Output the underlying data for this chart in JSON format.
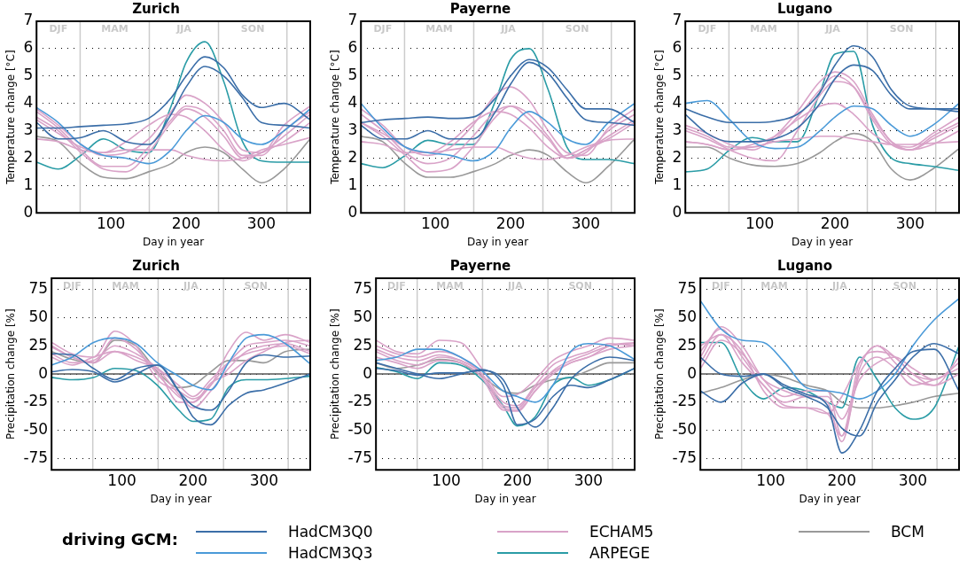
{
  "chart_data": [
    {
      "type": "line",
      "title": "Zurich",
      "xlabel": "Day in year",
      "ylabel": "Temperature change [°C]",
      "xlim": [
        1,
        365
      ],
      "xticks": [
        100,
        200,
        300
      ],
      "ylim": [
        0,
        7
      ],
      "yticks": [
        0,
        1,
        2,
        3,
        4,
        5,
        6,
        7
      ],
      "grid": "y",
      "marker": "none",
      "legend": "bottom",
      "legend_title": "driving GCM:",
      "ref_lines": [
        {
          "axis": "x",
          "value": 59,
          "color": "#cccccc"
        },
        {
          "axis": "x",
          "value": 151,
          "color": "#cccccc"
        },
        {
          "axis": "x",
          "value": 243,
          "color": "#cccccc"
        },
        {
          "axis": "x",
          "value": 334,
          "color": "#cccccc"
        }
      ],
      "annotations": [
        "DJF",
        "MAM",
        "JJA",
        "SON"
      ],
      "x": [
        1,
        30,
        60,
        90,
        120,
        150,
        180,
        200,
        225,
        250,
        275,
        300,
        330,
        365
      ],
      "series": [
        {
          "name": "HadCM3Q0",
          "color": "#3b6ea8",
          "values": [
            3.1,
            3.1,
            3.15,
            3.2,
            3.25,
            3.45,
            4.2,
            5.0,
            5.7,
            5.3,
            4.3,
            3.85,
            4.0,
            3.4
          ]
        },
        {
          "color": "#3b6ea8",
          "values": [
            3.3,
            2.7,
            2.75,
            3.0,
            2.6,
            2.5,
            3.6,
            4.6,
            5.35,
            5.0,
            4.2,
            3.3,
            3.2,
            3.1
          ]
        },
        {
          "name": "HadCM3Q3",
          "color": "#4a9ad8",
          "values": [
            3.85,
            3.3,
            2.5,
            2.1,
            2.0,
            1.8,
            2.3,
            3.0,
            3.55,
            3.3,
            2.7,
            2.5,
            3.0,
            3.8
          ]
        },
        {
          "name": "ECHAM5",
          "color": "#d9a3c8",
          "values": [
            3.8,
            3.2,
            2.5,
            2.1,
            2.2,
            2.7,
            3.7,
            4.3,
            4.0,
            3.3,
            2.3,
            2.2,
            3.2,
            3.9
          ]
        },
        {
          "color": "#d9a3c8",
          "values": [
            3.7,
            3.1,
            2.3,
            1.7,
            1.7,
            2.4,
            3.4,
            3.9,
            3.7,
            3.0,
            2.1,
            2.1,
            3.0,
            3.7
          ]
        },
        {
          "color": "#d9a3c8",
          "values": [
            3.5,
            3.0,
            2.2,
            1.6,
            1.5,
            2.2,
            3.3,
            3.8,
            3.5,
            2.8,
            2.0,
            2.2,
            2.8,
            3.6
          ]
        },
        {
          "color": "#d9a3c8",
          "values": [
            3.4,
            2.9,
            2.4,
            2.2,
            2.6,
            3.2,
            3.6,
            3.5,
            3.0,
            2.3,
            1.9,
            2.2,
            2.6,
            3.3
          ]
        },
        {
          "color": "#d9a3c8",
          "values": [
            2.7,
            2.6,
            2.3,
            2.2,
            2.3,
            2.3,
            2.3,
            2.1,
            1.95,
            1.9,
            2.0,
            2.3,
            2.5,
            2.75
          ]
        },
        {
          "name": "ARPEGE",
          "color": "#2a9ca6",
          "values": [
            1.85,
            1.6,
            2.1,
            2.7,
            2.3,
            2.2,
            3.9,
            5.5,
            6.25,
            4.8,
            2.6,
            1.9,
            1.85,
            1.85
          ]
        },
        {
          "name": "BCM",
          "color": "#999999",
          "values": [
            2.8,
            2.6,
            1.8,
            1.3,
            1.25,
            1.5,
            1.8,
            2.2,
            2.4,
            2.2,
            1.6,
            1.1,
            1.6,
            2.7
          ]
        }
      ]
    },
    {
      "type": "line",
      "title": "Payerne",
      "xlabel": "Day in year",
      "ylabel": "Temperature change [°C]",
      "xlim": [
        1,
        365
      ],
      "xticks": [
        100,
        200,
        300
      ],
      "ylim": [
        0,
        7
      ],
      "yticks": [
        0,
        1,
        2,
        3,
        4,
        5,
        6,
        7
      ],
      "grid": "y",
      "marker": "none",
      "legend": "bottom",
      "ref_lines": [
        {
          "axis": "x",
          "value": 59,
          "color": "#cccccc"
        },
        {
          "axis": "x",
          "value": 151,
          "color": "#cccccc"
        },
        {
          "axis": "x",
          "value": 243,
          "color": "#cccccc"
        },
        {
          "axis": "x",
          "value": 334,
          "color": "#cccccc"
        }
      ],
      "annotations": [
        "DJF",
        "MAM",
        "JJA",
        "SON"
      ],
      "x": [
        1,
        30,
        60,
        90,
        120,
        150,
        180,
        200,
        225,
        250,
        275,
        300,
        330,
        365
      ],
      "series": [
        {
          "name": "HadCM3Q0",
          "color": "#3b6ea8",
          "values": [
            3.3,
            3.4,
            3.45,
            3.5,
            3.45,
            3.5,
            4.2,
            5.0,
            5.6,
            5.3,
            4.5,
            3.8,
            3.8,
            3.3
          ]
        },
        {
          "color": "#3b6ea8",
          "values": [
            3.2,
            2.7,
            2.7,
            3.0,
            2.7,
            2.7,
            3.7,
            4.7,
            5.5,
            5.1,
            4.2,
            3.4,
            3.3,
            3.2
          ]
        },
        {
          "name": "HadCM3Q3",
          "color": "#4a9ad8",
          "values": [
            4.0,
            3.1,
            2.4,
            2.2,
            2.1,
            1.9,
            2.3,
            3.1,
            3.7,
            3.3,
            2.7,
            2.5,
            3.3,
            4.0
          ]
        },
        {
          "name": "ECHAM5",
          "color": "#d9a3c8",
          "values": [
            3.8,
            3.2,
            2.4,
            2.1,
            2.4,
            3.2,
            4.3,
            4.6,
            4.1,
            3.0,
            2.2,
            2.1,
            3.1,
            3.8
          ]
        },
        {
          "color": "#d9a3c8",
          "values": [
            3.6,
            3.0,
            2.2,
            1.8,
            2.0,
            2.8,
            3.7,
            3.9,
            3.6,
            2.8,
            2.0,
            2.2,
            3.0,
            3.6
          ]
        },
        {
          "color": "#d9a3c8",
          "values": [
            3.3,
            2.8,
            2.1,
            1.5,
            1.6,
            2.4,
            3.5,
            3.9,
            3.4,
            2.7,
            2.0,
            2.3,
            2.8,
            3.4
          ]
        },
        {
          "color": "#d9a3c8",
          "values": [
            3.3,
            2.9,
            2.4,
            2.2,
            2.6,
            3.3,
            3.7,
            3.6,
            3.1,
            2.4,
            2.0,
            2.3,
            2.7,
            3.3
          ]
        },
        {
          "color": "#d9a3c8",
          "values": [
            2.6,
            2.5,
            2.2,
            2.2,
            2.3,
            2.4,
            2.4,
            2.2,
            2.0,
            1.95,
            2.1,
            2.4,
            2.65,
            2.7
          ]
        },
        {
          "name": "ARPEGE",
          "color": "#2a9ca6",
          "values": [
            1.8,
            1.65,
            2.1,
            2.65,
            2.5,
            2.5,
            4.1,
            5.6,
            6.0,
            4.5,
            2.4,
            1.95,
            1.95,
            1.8
          ]
        },
        {
          "name": "BCM",
          "color": "#999999",
          "values": [
            2.8,
            2.6,
            1.8,
            1.3,
            1.3,
            1.5,
            1.8,
            2.1,
            2.3,
            2.1,
            1.5,
            1.1,
            1.7,
            2.7
          ]
        }
      ]
    },
    {
      "type": "line",
      "title": "Lugano",
      "xlabel": "Day in year",
      "ylabel": "Temperature change [°C]",
      "xlim": [
        1,
        365
      ],
      "xticks": [
        100,
        200,
        300
      ],
      "ylim": [
        0,
        7
      ],
      "yticks": [
        0,
        1,
        2,
        3,
        4,
        5,
        6,
        7
      ],
      "grid": "y",
      "marker": "none",
      "legend": "bottom",
      "ref_lines": [
        {
          "axis": "x",
          "value": 59,
          "color": "#cccccc"
        },
        {
          "axis": "x",
          "value": 151,
          "color": "#cccccc"
        },
        {
          "axis": "x",
          "value": 243,
          "color": "#cccccc"
        },
        {
          "axis": "x",
          "value": 334,
          "color": "#cccccc"
        }
      ],
      "annotations": [
        "DJF",
        "MAM",
        "JJA",
        "SON"
      ],
      "x": [
        1,
        30,
        60,
        90,
        120,
        150,
        180,
        200,
        225,
        250,
        275,
        300,
        330,
        365
      ],
      "series": [
        {
          "name": "HadCM3Q0",
          "color": "#3b6ea8",
          "values": [
            3.8,
            3.5,
            3.3,
            3.3,
            3.35,
            3.6,
            4.4,
            5.4,
            6.1,
            5.7,
            4.5,
            3.9,
            3.8,
            3.7
          ]
        },
        {
          "color": "#3b6ea8",
          "values": [
            3.6,
            2.9,
            2.6,
            2.6,
            2.7,
            3.1,
            4.0,
            4.9,
            5.4,
            5.2,
            4.3,
            3.8,
            3.8,
            3.8
          ]
        },
        {
          "name": "HadCM3Q3",
          "color": "#4a9ad8",
          "values": [
            4.0,
            4.1,
            3.4,
            2.6,
            2.35,
            2.4,
            3.0,
            3.5,
            3.9,
            3.8,
            3.2,
            2.8,
            3.2,
            4.0
          ]
        },
        {
          "name": "ECHAM5",
          "color": "#d9a3c8",
          "values": [
            3.2,
            2.9,
            2.5,
            2.3,
            2.8,
            3.7,
            4.8,
            5.15,
            4.8,
            3.6,
            2.6,
            2.4,
            2.9,
            3.5
          ]
        },
        {
          "color": "#d9a3c8",
          "values": [
            3.1,
            2.8,
            2.4,
            2.4,
            2.7,
            3.5,
            4.5,
            5.0,
            4.6,
            3.4,
            2.5,
            2.3,
            2.8,
            3.3
          ]
        },
        {
          "color": "#d9a3c8",
          "values": [
            3.0,
            2.7,
            2.3,
            2.0,
            1.9,
            3.0,
            4.3,
            4.8,
            4.6,
            3.5,
            2.6,
            2.3,
            2.7,
            3.2
          ]
        },
        {
          "color": "#d9a3c8",
          "values": [
            2.6,
            2.5,
            2.3,
            2.5,
            2.8,
            3.4,
            3.9,
            4.0,
            3.6,
            2.9,
            2.5,
            2.3,
            2.5,
            3.0
          ]
        },
        {
          "color": "#d9a3c8",
          "values": [
            2.6,
            2.5,
            2.3,
            2.4,
            2.6,
            2.7,
            2.8,
            2.8,
            2.7,
            2.6,
            2.5,
            2.5,
            2.55,
            2.6
          ]
        },
        {
          "name": "ARPEGE",
          "color": "#2a9ca6",
          "values": [
            1.5,
            1.6,
            2.3,
            2.75,
            2.6,
            2.6,
            4.4,
            5.8,
            5.9,
            3.2,
            2.0,
            1.8,
            1.7,
            1.55
          ]
        },
        {
          "name": "BCM",
          "color": "#999999",
          "values": [
            2.4,
            2.4,
            2.0,
            1.75,
            1.7,
            1.8,
            2.2,
            2.6,
            2.9,
            2.6,
            1.6,
            1.2,
            1.6,
            2.35
          ]
        }
      ]
    },
    {
      "type": "line",
      "title": "Zurich",
      "xlabel": "Day in year",
      "ylabel": "Precipitation change [%]",
      "xlim": [
        1,
        365
      ],
      "xticks": [
        100,
        200,
        300
      ],
      "ylim": [
        -85,
        85
      ],
      "yticks": [
        -75,
        -50,
        -25,
        0,
        25,
        50,
        75
      ],
      "grid": "y",
      "marker": "none",
      "legend": "bottom",
      "ref_lines": [
        {
          "axis": "y",
          "value": 0,
          "color": "#555555"
        },
        {
          "axis": "x",
          "value": 59,
          "color": "#cccccc"
        },
        {
          "axis": "x",
          "value": 151,
          "color": "#cccccc"
        },
        {
          "axis": "x",
          "value": 243,
          "color": "#cccccc"
        },
        {
          "axis": "x",
          "value": 334,
          "color": "#cccccc"
        }
      ],
      "annotations": [
        "DJF",
        "MAM",
        "JJA",
        "SON"
      ],
      "x": [
        1,
        30,
        60,
        90,
        120,
        150,
        180,
        200,
        225,
        250,
        275,
        300,
        330,
        365
      ],
      "series": [
        {
          "name": "HadCM3Q0",
          "color": "#3b6ea8",
          "values": [
            18,
            17,
            5,
            -5,
            5,
            8,
            -15,
            -28,
            -32,
            -15,
            10,
            17,
            15,
            16
          ]
        },
        {
          "color": "#3b6ea8",
          "values": [
            2,
            4,
            2,
            -7,
            0,
            8,
            -15,
            -38,
            -45,
            -28,
            -17,
            -14,
            -8,
            0
          ]
        },
        {
          "name": "HadCM3Q3",
          "color": "#4a9ad8",
          "values": [
            8,
            15,
            28,
            32,
            27,
            10,
            -2,
            -10,
            -14,
            10,
            32,
            35,
            27,
            9
          ]
        },
        {
          "name": "ECHAM5",
          "color": "#d9a3c8",
          "values": [
            28,
            18,
            15,
            38,
            25,
            -5,
            -15,
            -22,
            -10,
            20,
            37,
            30,
            35,
            28
          ]
        },
        {
          "color": "#d9a3c8",
          "values": [
            24,
            15,
            10,
            32,
            22,
            0,
            -20,
            -25,
            -10,
            10,
            25,
            28,
            30,
            25
          ]
        },
        {
          "color": "#d9a3c8",
          "values": [
            18,
            10,
            12,
            25,
            18,
            5,
            -18,
            -30,
            -15,
            5,
            20,
            25,
            27,
            20
          ]
        },
        {
          "color": "#d9a3c8",
          "values": [
            15,
            8,
            15,
            20,
            15,
            5,
            -10,
            -20,
            -5,
            10,
            18,
            22,
            25,
            18
          ]
        },
        {
          "color": "#d9a3c8",
          "values": [
            25,
            15,
            10,
            20,
            12,
            3,
            -25,
            -25,
            -8,
            0,
            12,
            20,
            28,
            30
          ]
        },
        {
          "name": "ARPEGE",
          "color": "#2a9ca6",
          "values": [
            -3,
            -5,
            -3,
            5,
            3,
            -10,
            -32,
            -42,
            -40,
            -12,
            -5,
            -5,
            -4,
            -2
          ]
        },
        {
          "name": "BCM",
          "color": "#999999",
          "values": [
            20,
            13,
            10,
            30,
            25,
            2,
            -12,
            -10,
            2,
            12,
            12,
            10,
            20,
            22
          ]
        }
      ]
    },
    {
      "type": "line",
      "title": "Payerne",
      "xlabel": "Day in year",
      "ylabel": "Precipitation change [%]",
      "xlim": [
        1,
        365
      ],
      "xticks": [
        100,
        200,
        300
      ],
      "ylim": [
        -85,
        85
      ],
      "yticks": [
        -75,
        -50,
        -25,
        0,
        25,
        50,
        75
      ],
      "grid": "y",
      "marker": "none",
      "legend": "bottom",
      "ref_lines": [
        {
          "axis": "y",
          "value": 0,
          "color": "#555555"
        },
        {
          "axis": "x",
          "value": 59,
          "color": "#cccccc"
        },
        {
          "axis": "x",
          "value": 151,
          "color": "#cccccc"
        },
        {
          "axis": "x",
          "value": 243,
          "color": "#cccccc"
        },
        {
          "axis": "x",
          "value": 334,
          "color": "#cccccc"
        }
      ],
      "annotations": [
        "DJF",
        "MAM",
        "JJA",
        "SON"
      ],
      "x": [
        1,
        30,
        60,
        90,
        120,
        150,
        180,
        200,
        225,
        250,
        275,
        300,
        330,
        365
      ],
      "series": [
        {
          "name": "HadCM3Q0",
          "color": "#3b6ea8",
          "values": [
            10,
            5,
            0,
            -4,
            0,
            4,
            -10,
            -45,
            -40,
            -20,
            -10,
            -12,
            -5,
            5
          ]
        },
        {
          "color": "#3b6ea8",
          "values": [
            5,
            3,
            -1,
            1,
            1,
            3,
            -5,
            -30,
            -47,
            -30,
            -5,
            8,
            15,
            12
          ]
        },
        {
          "name": "HadCM3Q3",
          "color": "#4a9ad8",
          "values": [
            12,
            15,
            22,
            22,
            15,
            3,
            -15,
            -20,
            -25,
            -10,
            20,
            27,
            25,
            13
          ]
        },
        {
          "name": "ECHAM5",
          "color": "#d9a3c8",
          "values": [
            30,
            20,
            18,
            30,
            28,
            5,
            -20,
            -18,
            -5,
            12,
            20,
            25,
            32,
            30
          ]
        },
        {
          "color": "#d9a3c8",
          "values": [
            25,
            18,
            15,
            20,
            15,
            0,
            -25,
            -28,
            -10,
            8,
            15,
            20,
            27,
            25
          ]
        },
        {
          "color": "#d9a3c8",
          "values": [
            22,
            15,
            12,
            17,
            12,
            0,
            -30,
            -32,
            -15,
            3,
            12,
            18,
            25,
            27
          ]
        },
        {
          "color": "#d9a3c8",
          "values": [
            20,
            12,
            8,
            15,
            12,
            0,
            -28,
            -30,
            -12,
            2,
            10,
            15,
            22,
            25
          ]
        },
        {
          "color": "#d9a3c8",
          "values": [
            15,
            10,
            5,
            12,
            10,
            -3,
            -32,
            -33,
            -15,
            0,
            10,
            15,
            25,
            28
          ]
        },
        {
          "name": "ARPEGE",
          "color": "#2a9ca6",
          "values": [
            6,
            2,
            -4,
            10,
            8,
            -5,
            -28,
            -46,
            -38,
            -10,
            -3,
            -10,
            -5,
            5
          ]
        },
        {
          "name": "BCM",
          "color": "#999999",
          "values": [
            10,
            5,
            8,
            13,
            10,
            -2,
            -15,
            -17,
            -10,
            -5,
            -3,
            3,
            10,
            10
          ]
        }
      ]
    },
    {
      "type": "line",
      "title": "Lugano",
      "xlabel": "Day in year",
      "ylabel": "Precipitation change [%]",
      "xlim": [
        1,
        365
      ],
      "xticks": [
        100,
        200,
        300
      ],
      "ylim": [
        -85,
        85
      ],
      "yticks": [
        -75,
        -50,
        -25,
        0,
        25,
        50,
        75
      ],
      "grid": "y",
      "marker": "none",
      "legend": "bottom",
      "ref_lines": [
        {
          "axis": "y",
          "value": 0,
          "color": "#555555"
        },
        {
          "axis": "x",
          "value": 59,
          "color": "#cccccc"
        },
        {
          "axis": "x",
          "value": 151,
          "color": "#cccccc"
        },
        {
          "axis": "x",
          "value": 243,
          "color": "#cccccc"
        },
        {
          "axis": "x",
          "value": 334,
          "color": "#cccccc"
        }
      ],
      "annotations": [
        "DJF",
        "MAM",
        "JJA",
        "SON"
      ],
      "x": [
        1,
        30,
        60,
        90,
        120,
        150,
        180,
        200,
        225,
        250,
        275,
        300,
        330,
        365
      ],
      "series": [
        {
          "name": "HadCM3Q0",
          "color": "#3b6ea8",
          "values": [
            -15,
            -25,
            -8,
            0,
            -10,
            -18,
            -28,
            -70,
            -50,
            -15,
            5,
            20,
            22,
            -15
          ]
        },
        {
          "color": "#3b6ea8",
          "values": [
            15,
            0,
            -2,
            0,
            -12,
            -20,
            -30,
            -48,
            -55,
            -25,
            -5,
            15,
            27,
            18
          ]
        },
        {
          "name": "HadCM3Q3",
          "color": "#4a9ad8",
          "values": [
            65,
            40,
            30,
            28,
            10,
            -12,
            -15,
            -17,
            -22,
            -15,
            0,
            25,
            48,
            67
          ]
        },
        {
          "name": "ECHAM5",
          "color": "#d9a3c8",
          "values": [
            15,
            42,
            25,
            -5,
            -20,
            -15,
            -15,
            -55,
            10,
            20,
            15,
            0,
            -5,
            10
          ]
        },
        {
          "color": "#d9a3c8",
          "values": [
            20,
            40,
            15,
            -10,
            -25,
            -20,
            -25,
            -60,
            5,
            25,
            10,
            -5,
            -10,
            15
          ]
        },
        {
          "color": "#d9a3c8",
          "values": [
            10,
            35,
            20,
            -15,
            -30,
            -30,
            -35,
            -55,
            0,
            15,
            5,
            -10,
            -5,
            5
          ]
        },
        {
          "color": "#d9a3c8",
          "values": [
            5,
            30,
            18,
            -5,
            -15,
            -20,
            -20,
            -40,
            -5,
            10,
            15,
            5,
            -5,
            10
          ]
        },
        {
          "color": "#d9a3c8",
          "values": [
            25,
            35,
            10,
            -10,
            -28,
            -30,
            -35,
            -20,
            10,
            25,
            15,
            0,
            -10,
            0
          ]
        },
        {
          "name": "ARPEGE",
          "color": "#2a9ca6",
          "values": [
            28,
            28,
            -5,
            -22,
            -12,
            -15,
            -25,
            -30,
            15,
            -5,
            -30,
            -40,
            -30,
            25
          ]
        },
        {
          "name": "BCM",
          "color": "#999999",
          "values": [
            -17,
            -12,
            -5,
            0,
            -3,
            -10,
            -15,
            -25,
            -30,
            -30,
            -28,
            -25,
            -20,
            -17
          ]
        }
      ]
    }
  ]
}
